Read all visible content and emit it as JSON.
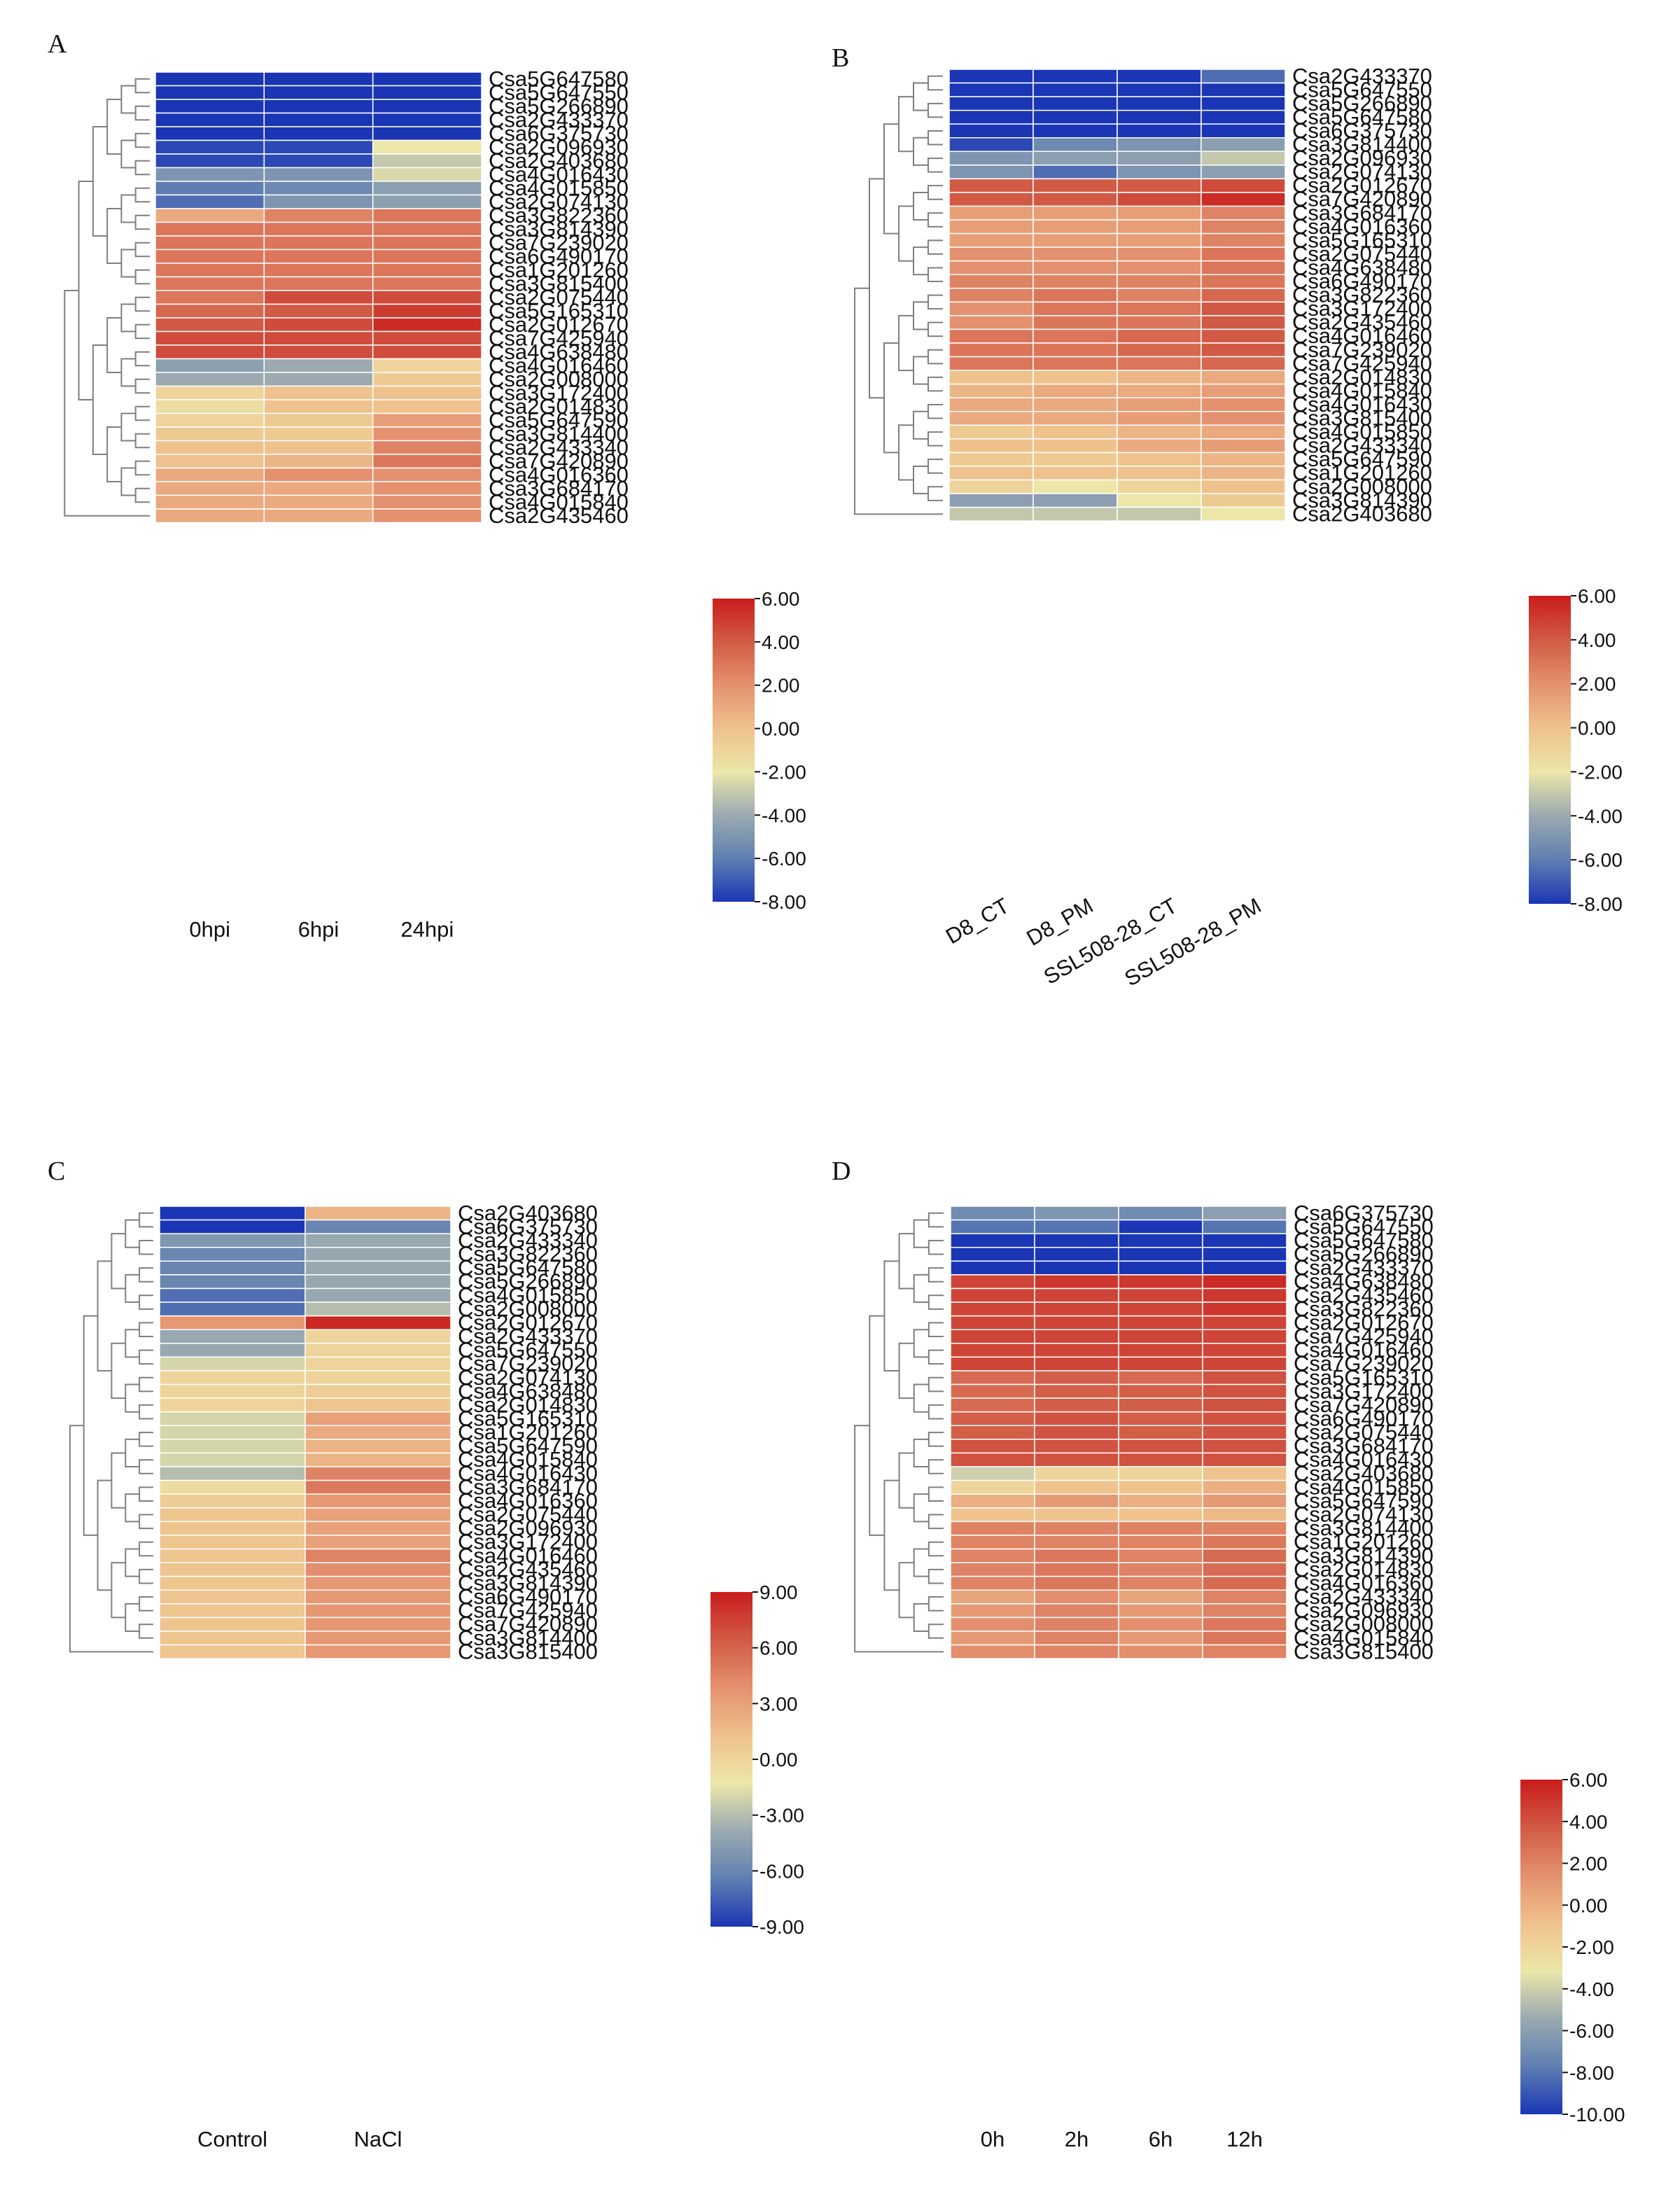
{
  "colors": {
    "scale": [
      "#1a36b5",
      "#5f7fb1",
      "#9aaab0",
      "#ece6a8",
      "#efc18c",
      "#e4916f",
      "#d15a45",
      "#c91c1c"
    ],
    "grid_line": "#ffffff",
    "dendrogram": "#7f7f7f"
  },
  "chart_data": [
    {
      "panel": "A",
      "type": "heatmap",
      "columns": [
        "0hpi",
        "6hpi",
        "24hpi"
      ],
      "rows": [
        "Csa5G647580",
        "Csa5G647550",
        "Csa5G266890",
        "Csa2G433370",
        "Csa6G375730",
        "Csa2G096930",
        "Csa2G403680",
        "Csa4G016430",
        "Csa4G015850",
        "Csa2G074130",
        "Csa3G822360",
        "Csa3G814390",
        "Csa7G239020",
        "Csa6G490170",
        "Csa1G201260",
        "Csa3G815400",
        "Csa2G075440",
        "Csa5G165310",
        "Csa2G012670",
        "Csa7G425940",
        "Csa4G638480",
        "Csa4G016460",
        "Csa2G008000",
        "Csa3G172400",
        "Csa2G014830",
        "Csa5G647590",
        "Csa3G814400",
        "Csa2G433340",
        "Csa7G420890",
        "Csa4G016360",
        "Csa3G684170",
        "Csa4G015840",
        "Csa2G435460"
      ],
      "values": [
        [
          -8,
          -8,
          -8
        ],
        [
          -8,
          -8,
          -8
        ],
        [
          -8,
          -8,
          -8
        ],
        [
          -8,
          -8,
          -8
        ],
        [
          -8,
          -8,
          -8
        ],
        [
          -7.5,
          -7.5,
          -2
        ],
        [
          -7.5,
          -7.5,
          -3
        ],
        [
          -5,
          -5,
          -2.5
        ],
        [
          -6,
          -5.5,
          -4.5
        ],
        [
          -6.5,
          -5,
          -4.5
        ],
        [
          1,
          2.5,
          3
        ],
        [
          3,
          3,
          3
        ],
        [
          3,
          3,
          3
        ],
        [
          3,
          3,
          3
        ],
        [
          3,
          3,
          3
        ],
        [
          3,
          3,
          3
        ],
        [
          3,
          4.5,
          4.5
        ],
        [
          3.5,
          4,
          5
        ],
        [
          4,
          4.5,
          5.5
        ],
        [
          4.5,
          4.5,
          4.5
        ],
        [
          4.5,
          4.5,
          4.5
        ],
        [
          -4.5,
          -4,
          -1
        ],
        [
          -4,
          -4,
          -0.5
        ],
        [
          -1,
          0,
          0
        ],
        [
          -1.5,
          0,
          0
        ],
        [
          -1,
          -0.5,
          1.5
        ],
        [
          -0.5,
          -0.5,
          2
        ],
        [
          0,
          0,
          2.5
        ],
        [
          0,
          0.5,
          3
        ],
        [
          1,
          2,
          2
        ],
        [
          1,
          1,
          2
        ],
        [
          1,
          1,
          2
        ],
        [
          1,
          1,
          2
        ]
      ],
      "scale": {
        "min": -8,
        "max": 6,
        "ticks": [
          "6.00",
          "4.00",
          "2.00",
          "0.00",
          "-2.00",
          "-4.00",
          "-6.00",
          "-8.00"
        ]
      }
    },
    {
      "panel": "B",
      "type": "heatmap",
      "columns": [
        "D8_CT",
        "D8_PM",
        "SSL508-28_CT",
        "SSL508-28_PM"
      ],
      "rows": [
        "Csa2G433370",
        "Csa5G647550",
        "Csa5G266890",
        "Csa5G647580",
        "Csa6G375730",
        "Csa3G814400",
        "Csa2G096930",
        "Csa2G074130",
        "Csa2G012670",
        "Csa7G420890",
        "Csa3G684170",
        "Csa4G016360",
        "Csa5G165310",
        "Csa2G075440",
        "Csa4G638480",
        "Csa6G490170",
        "Csa3G822360",
        "Csa3G172400",
        "Csa2G435460",
        "Csa4G016460",
        "Csa7G239020",
        "Csa7G425940",
        "Csa2G014830",
        "Csa4G015840",
        "Csa4G016430",
        "Csa3G815400",
        "Csa4G015850",
        "Csa2G433340",
        "Csa5G647590",
        "Csa1G201260",
        "Csa2G008000",
        "Csa3G814390",
        "Csa2G403680"
      ],
      "values": [
        [
          -8,
          -8,
          -8,
          -6.5
        ],
        [
          -8,
          -8,
          -8,
          -8
        ],
        [
          -8,
          -8,
          -8,
          -8
        ],
        [
          -8,
          -8,
          -8,
          -8
        ],
        [
          -8,
          -8,
          -8,
          -8
        ],
        [
          -7.5,
          -5.5,
          -5,
          -4.5
        ],
        [
          -5,
          -4.5,
          -4.5,
          -3
        ],
        [
          -5,
          -6.5,
          -5,
          -4.5
        ],
        [
          4,
          4,
          4,
          4.5
        ],
        [
          4,
          4,
          4.5,
          5.5
        ],
        [
          1.5,
          1.5,
          1.5,
          2.5
        ],
        [
          1.5,
          1.5,
          1.5,
          2.5
        ],
        [
          1.5,
          1.5,
          1.5,
          2.5
        ],
        [
          2,
          2,
          2,
          3
        ],
        [
          2,
          2,
          2,
          3
        ],
        [
          2.5,
          2.5,
          2.5,
          3
        ],
        [
          2.5,
          3,
          2.5,
          3.5
        ],
        [
          2,
          3,
          3,
          4
        ],
        [
          2,
          3,
          3,
          4
        ],
        [
          3,
          3,
          3.5,
          4
        ],
        [
          3,
          3,
          3.5,
          4
        ],
        [
          3,
          3,
          3,
          3.5
        ],
        [
          0,
          0,
          0.5,
          1
        ],
        [
          0.5,
          1,
          1,
          1.5
        ],
        [
          1,
          1,
          1.5,
          2
        ],
        [
          1,
          1,
          1.5,
          2
        ],
        [
          -0.5,
          0,
          0.5,
          1
        ],
        [
          0,
          0,
          1,
          1.5
        ],
        [
          -0.5,
          -0.5,
          0,
          0.5
        ],
        [
          0,
          0,
          0,
          0.5
        ],
        [
          -1,
          -2,
          -1,
          0
        ],
        [
          -4.5,
          -4.5,
          -2,
          -0.5
        ],
        [
          -3,
          -3,
          -3,
          -2
        ]
      ],
      "scale": {
        "min": -8,
        "max": 6,
        "ticks": [
          "6.00",
          "4.00",
          "2.00",
          "0.00",
          "-2.00",
          "-4.00",
          "-6.00",
          "-8.00"
        ]
      }
    },
    {
      "panel": "C",
      "type": "heatmap",
      "columns": [
        "Control",
        "NaCl"
      ],
      "rows": [
        "Csa2G403680",
        "Csa6G375730",
        "Csa2G433340",
        "Csa3G822360",
        "Csa5G647580",
        "Csa5G266890",
        "Csa4G015850",
        "Csa2G008000",
        "Csa2G012670",
        "Csa2G433370",
        "Csa5G647550",
        "Csa7G239020",
        "Csa2G074130",
        "Csa4G638480",
        "Csa2G014830",
        "Csa5G165310",
        "Csa1G201260",
        "Csa5G647590",
        "Csa4G015840",
        "Csa4G016430",
        "Csa3G684170",
        "Csa4G016360",
        "Csa2G075440",
        "Csa2G096930",
        "Csa3G172400",
        "Csa4G016460",
        "Csa2G435460",
        "Csa3G814390",
        "Csa6G490170",
        "Csa7G425940",
        "Csa7G420890",
        "Csa3G814400",
        "Csa3G815400"
      ],
      "values": [
        [
          -9,
          2
        ],
        [
          -9,
          -6
        ],
        [
          -5,
          -4
        ],
        [
          -6,
          -4
        ],
        [
          -6,
          -4
        ],
        [
          -6,
          -4
        ],
        [
          -7,
          -4
        ],
        [
          -7,
          -3
        ],
        [
          3.5,
          8.5
        ],
        [
          -4,
          0
        ],
        [
          -4,
          0
        ],
        [
          -2,
          0
        ],
        [
          0,
          0
        ],
        [
          0,
          0.5
        ],
        [
          0,
          1
        ],
        [
          -2,
          3
        ],
        [
          -2,
          2.5
        ],
        [
          -2,
          2
        ],
        [
          -2,
          2
        ],
        [
          -3,
          4.5
        ],
        [
          -0.5,
          5
        ],
        [
          0.5,
          3.5
        ],
        [
          1,
          3
        ],
        [
          1,
          3
        ],
        [
          1,
          3
        ],
        [
          1,
          4.5
        ],
        [
          1,
          4
        ],
        [
          1,
          3.5
        ],
        [
          1,
          3.5
        ],
        [
          1,
          3.5
        ],
        [
          1,
          3.5
        ],
        [
          1,
          3.5
        ],
        [
          1,
          3.5
        ]
      ],
      "scale": {
        "min": -9,
        "max": 9,
        "ticks": [
          "9.00",
          "6.00",
          "3.00",
          "0.00",
          "-3.00",
          "-6.00",
          "-9.00"
        ]
      }
    },
    {
      "panel": "D",
      "type": "heatmap",
      "columns": [
        "0h",
        "2h",
        "6h",
        "12h"
      ],
      "rows": [
        "Csa6G375730",
        "Csa5G647550",
        "Csa5G647580",
        "Csa5G266890",
        "Csa2G433370",
        "Csa4G638480",
        "Csa2G435460",
        "Csa3G822360",
        "Csa2G012670",
        "Csa7G425940",
        "Csa4G016460",
        "Csa7G239020",
        "Csa5G165310",
        "Csa3G172400",
        "Csa7G420890",
        "Csa6G490170",
        "Csa2G075440",
        "Csa3G684170",
        "Csa4G016430",
        "Csa2G403680",
        "Csa4G015850",
        "Csa5G647590",
        "Csa2G074130",
        "Csa3G814400",
        "Csa1G201260",
        "Csa3G814390",
        "Csa2G014830",
        "Csa4G016360",
        "Csa2G433340",
        "Csa2G096930",
        "Csa2G008000",
        "Csa4G015840",
        "Csa3G815400"
      ],
      "values": [
        [
          -7,
          -6.5,
          -7,
          -6
        ],
        [
          -8,
          -8,
          -10,
          -8
        ],
        [
          -10,
          -10,
          -10,
          -10
        ],
        [
          -10,
          -10,
          -10,
          -10
        ],
        [
          -10,
          -10,
          -10,
          -10
        ],
        [
          4.5,
          5,
          5,
          5.5
        ],
        [
          4.5,
          4.5,
          4.5,
          5
        ],
        [
          4.5,
          4.5,
          4.5,
          5
        ],
        [
          4.5,
          4.5,
          4.5,
          4.5
        ],
        [
          4.5,
          4.5,
          4.5,
          4.5
        ],
        [
          4.5,
          4.5,
          4.5,
          4.5
        ],
        [
          4.5,
          4.5,
          4.5,
          4.5
        ],
        [
          3,
          3.5,
          3,
          4
        ],
        [
          3,
          3.5,
          3.5,
          4
        ],
        [
          3,
          3.5,
          3.5,
          4
        ],
        [
          3.5,
          4,
          3.5,
          4
        ],
        [
          3.5,
          4,
          3.5,
          4
        ],
        [
          4,
          4,
          4,
          4
        ],
        [
          4,
          4,
          4,
          4
        ],
        [
          -4,
          -2,
          -2,
          -1
        ],
        [
          -2,
          -1,
          -1,
          0
        ],
        [
          0,
          1,
          0,
          1
        ],
        [
          -1,
          -1,
          -1,
          -0.5
        ],
        [
          2,
          2,
          2,
          2
        ],
        [
          2,
          2,
          2,
          2.5
        ],
        [
          2,
          2.5,
          2,
          3
        ],
        [
          2,
          2.5,
          2,
          3
        ],
        [
          2,
          2.5,
          2,
          3
        ],
        [
          0.5,
          1.5,
          0.5,
          2
        ],
        [
          1,
          2,
          1,
          2
        ],
        [
          1.5,
          2,
          1.5,
          2.5
        ],
        [
          1,
          2,
          1,
          2.5
        ],
        [
          1.5,
          2,
          1.5,
          2
        ]
      ],
      "scale": {
        "min": -10,
        "max": 6,
        "ticks": [
          "6.00",
          "4.00",
          "2.00",
          "0.00",
          "-2.00",
          "-4.00",
          "-6.00",
          "-8.00",
          "-10.00"
        ]
      }
    }
  ]
}
